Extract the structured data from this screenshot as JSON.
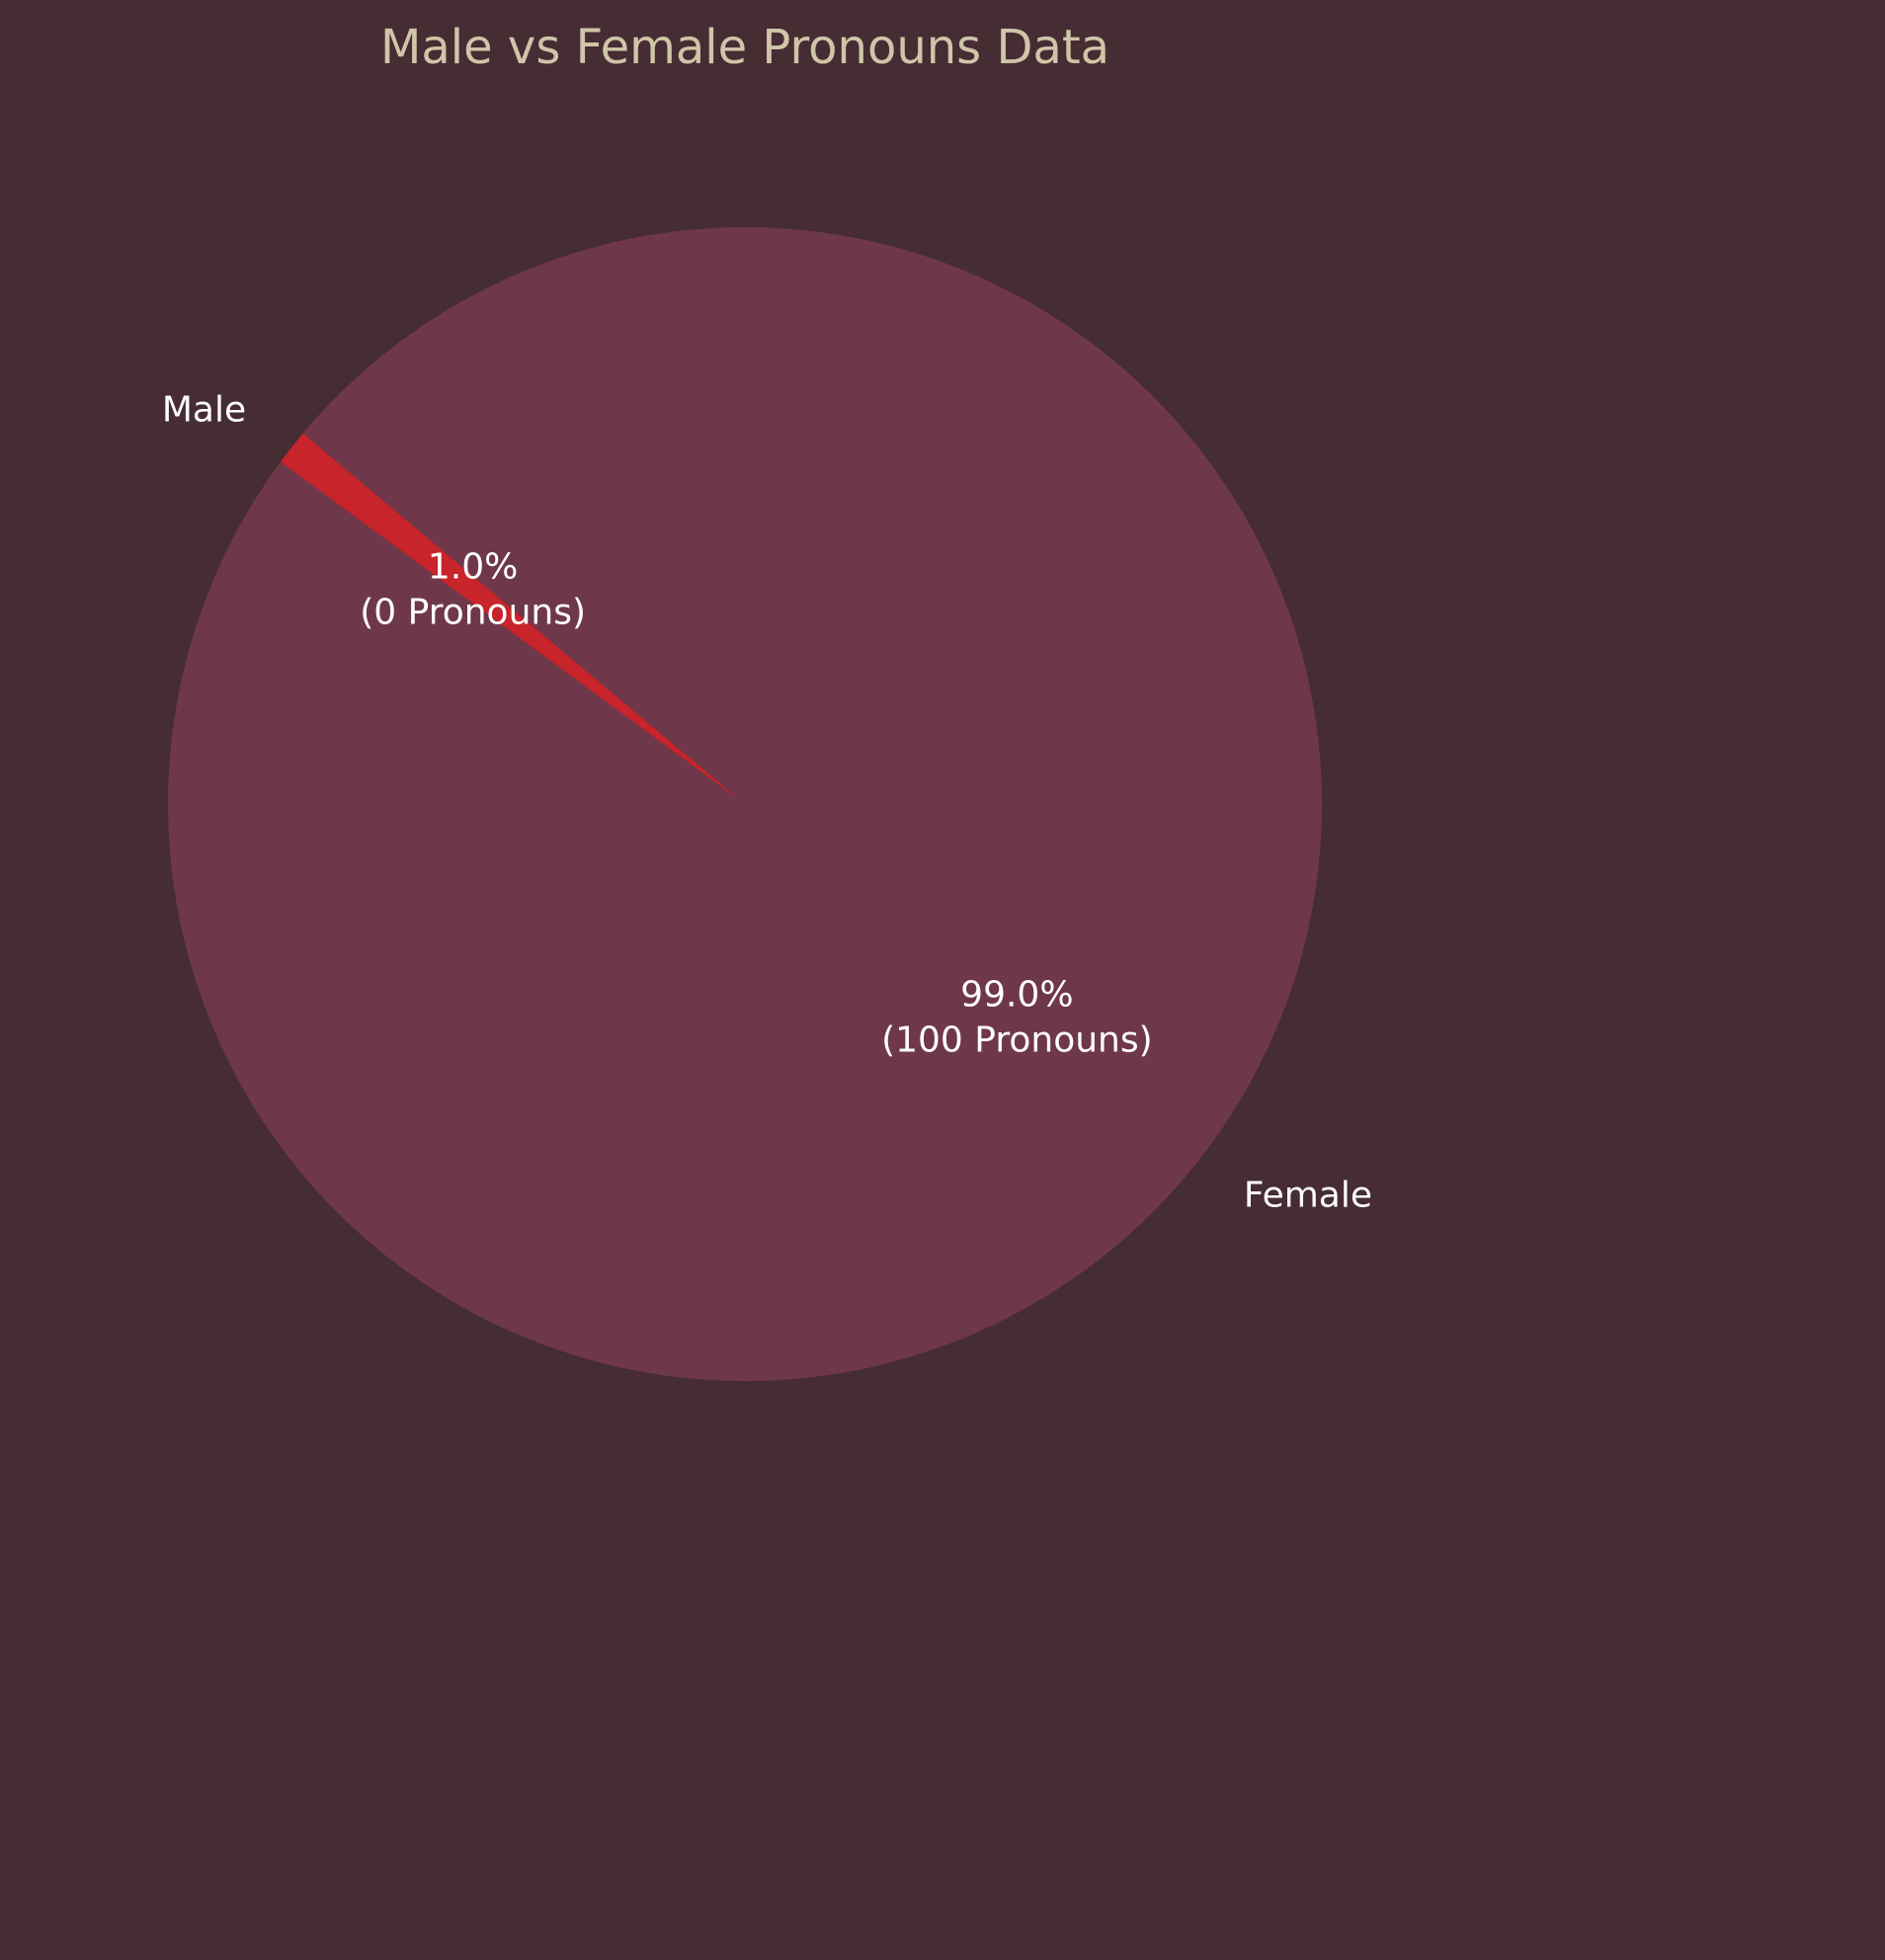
{
  "chart_data": {
    "type": "pie",
    "title": "Male vs Female Pronouns Data",
    "start_angle_deg": 140,
    "direction": "counterclockwise",
    "background_color": "#462c33",
    "slices": [
      {
        "label": "Male",
        "percent": 1.0,
        "percent_text": "1.0%",
        "count_text": "(0 Pronouns)",
        "color": "#c8242b"
      },
      {
        "label": "Female",
        "percent": 99.0,
        "percent_text": "99.0%",
        "count_text": "(100 Pronouns)",
        "color": "#6f384a"
      }
    ]
  }
}
